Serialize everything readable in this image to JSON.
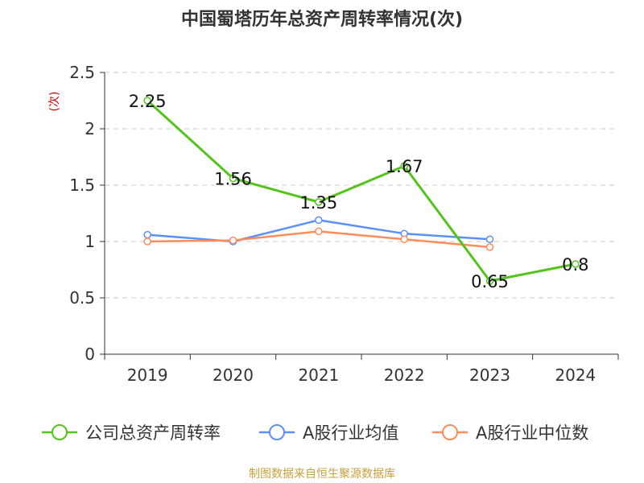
{
  "title": "中国蜀塔历年总资产周转率情况(次)",
  "source_note": "制图数据来自恒生聚源数据库",
  "colors": {
    "company": "#52c41a",
    "industry_avg": "#5b8ff9",
    "industry_median": "#ff8c5a",
    "grid": "#cccccc",
    "ylabel": "#cc0000",
    "source": "#c8a040"
  },
  "chart_data": {
    "type": "line",
    "title": "中国蜀塔历年总资产周转率情况(次)",
    "xlabel": "",
    "ylabel": "(次)",
    "categories": [
      "2019",
      "2020",
      "2021",
      "2022",
      "2023",
      "2024"
    ],
    "ylim": [
      0,
      2.5
    ],
    "yticks": [
      "0",
      "0.5",
      "1",
      "1.5",
      "2",
      "2.5"
    ],
    "grid": true,
    "legend_position": "bottom",
    "series": [
      {
        "name": "公司总资产周转率",
        "values": [
          2.25,
          1.56,
          1.35,
          1.67,
          0.65,
          0.8
        ],
        "labels": [
          "2.25",
          "1.56",
          "1.35",
          "1.67",
          "0.65",
          "0.8"
        ]
      },
      {
        "name": "A股行业均值",
        "values": [
          1.06,
          1.0,
          1.19,
          1.07,
          1.02,
          null
        ]
      },
      {
        "name": "A股行业中位数",
        "values": [
          1.0,
          1.01,
          1.09,
          1.02,
          0.95,
          null
        ]
      }
    ]
  }
}
